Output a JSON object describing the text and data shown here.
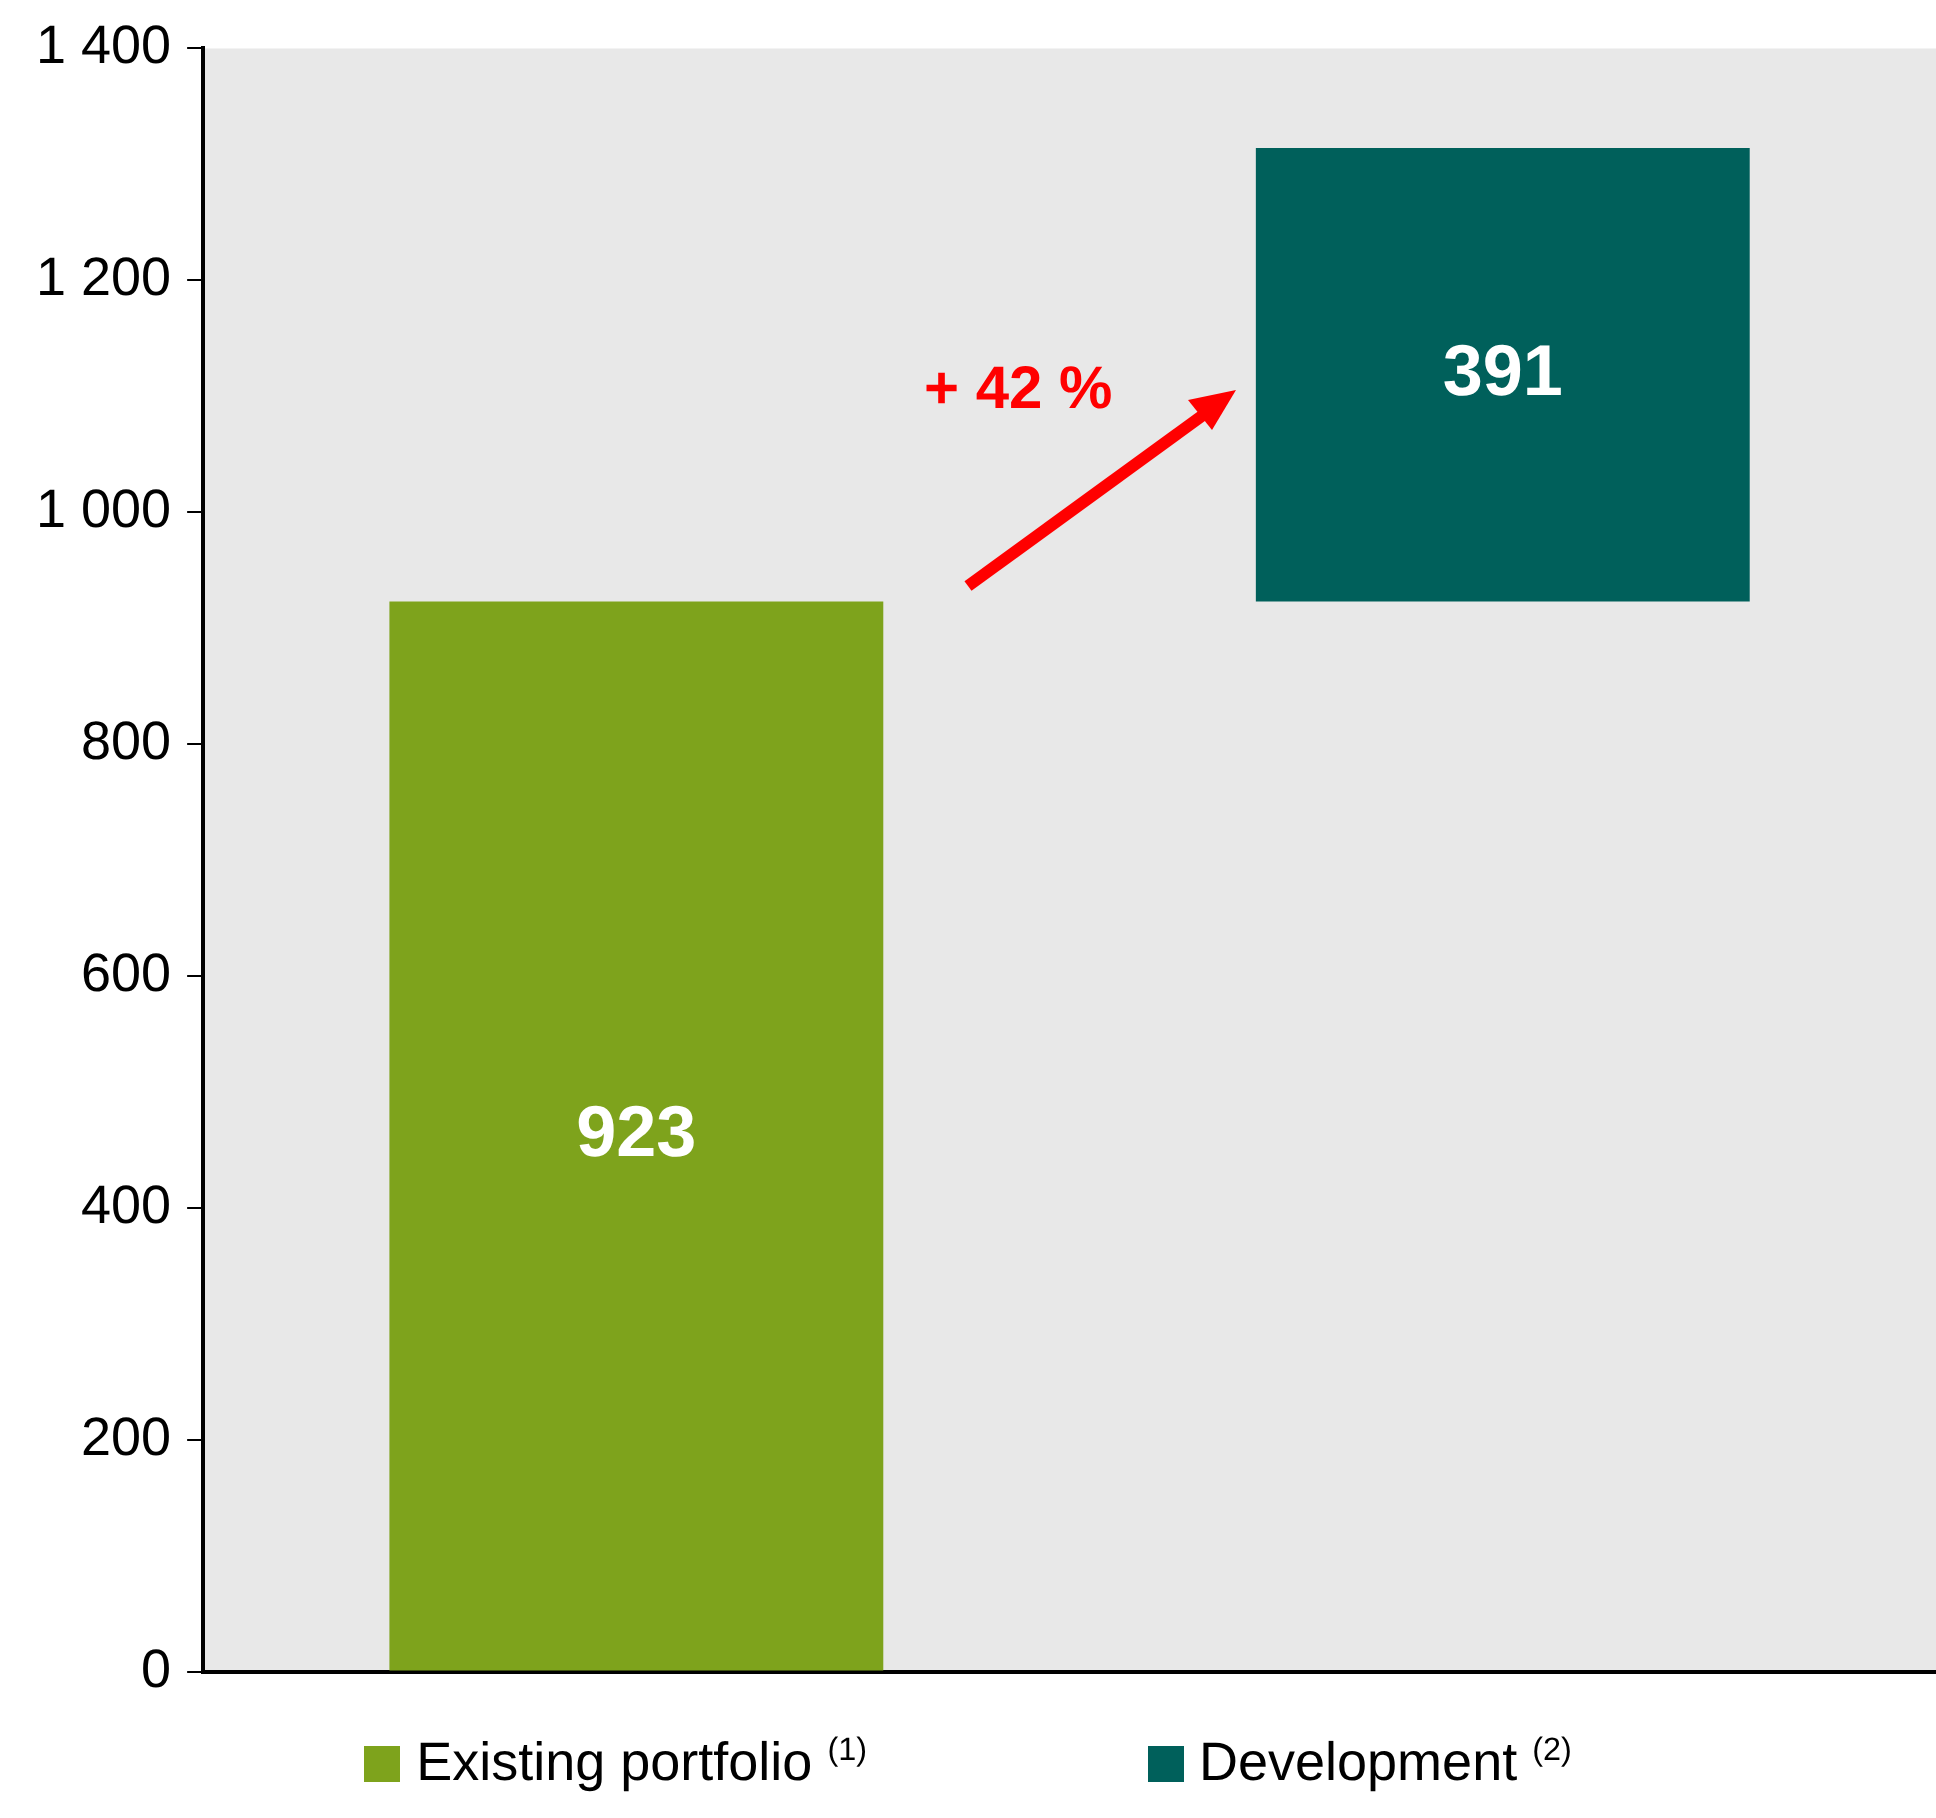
{
  "chart_data": {
    "type": "bar",
    "categories": [
      null,
      null
    ],
    "series": [
      {
        "name": "Existing portfolio $^{(1)}$",
        "color": "#7ea31c",
        "values": [
          923,
          null
        ],
        "base": [
          0,
          null
        ]
      },
      {
        "name": "Development $^{(2)}$",
        "color": "#00605b",
        "values": [
          null,
          391
        ],
        "base": [
          null,
          923
        ]
      }
    ],
    "ylim": [
      0,
      1400
    ],
    "yticks": [
      0,
      200,
      400,
      600,
      800,
      {
        "value": 1000,
        "label": "1 000"
      },
      {
        "value": 1200,
        "label": "1 200"
      },
      {
        "value": 1400,
        "label": "1 400"
      }
    ],
    "data_labels": true,
    "grid": false,
    "legend": "bottom",
    "annotations": [
      "+ 42 %"
    ]
  }
}
